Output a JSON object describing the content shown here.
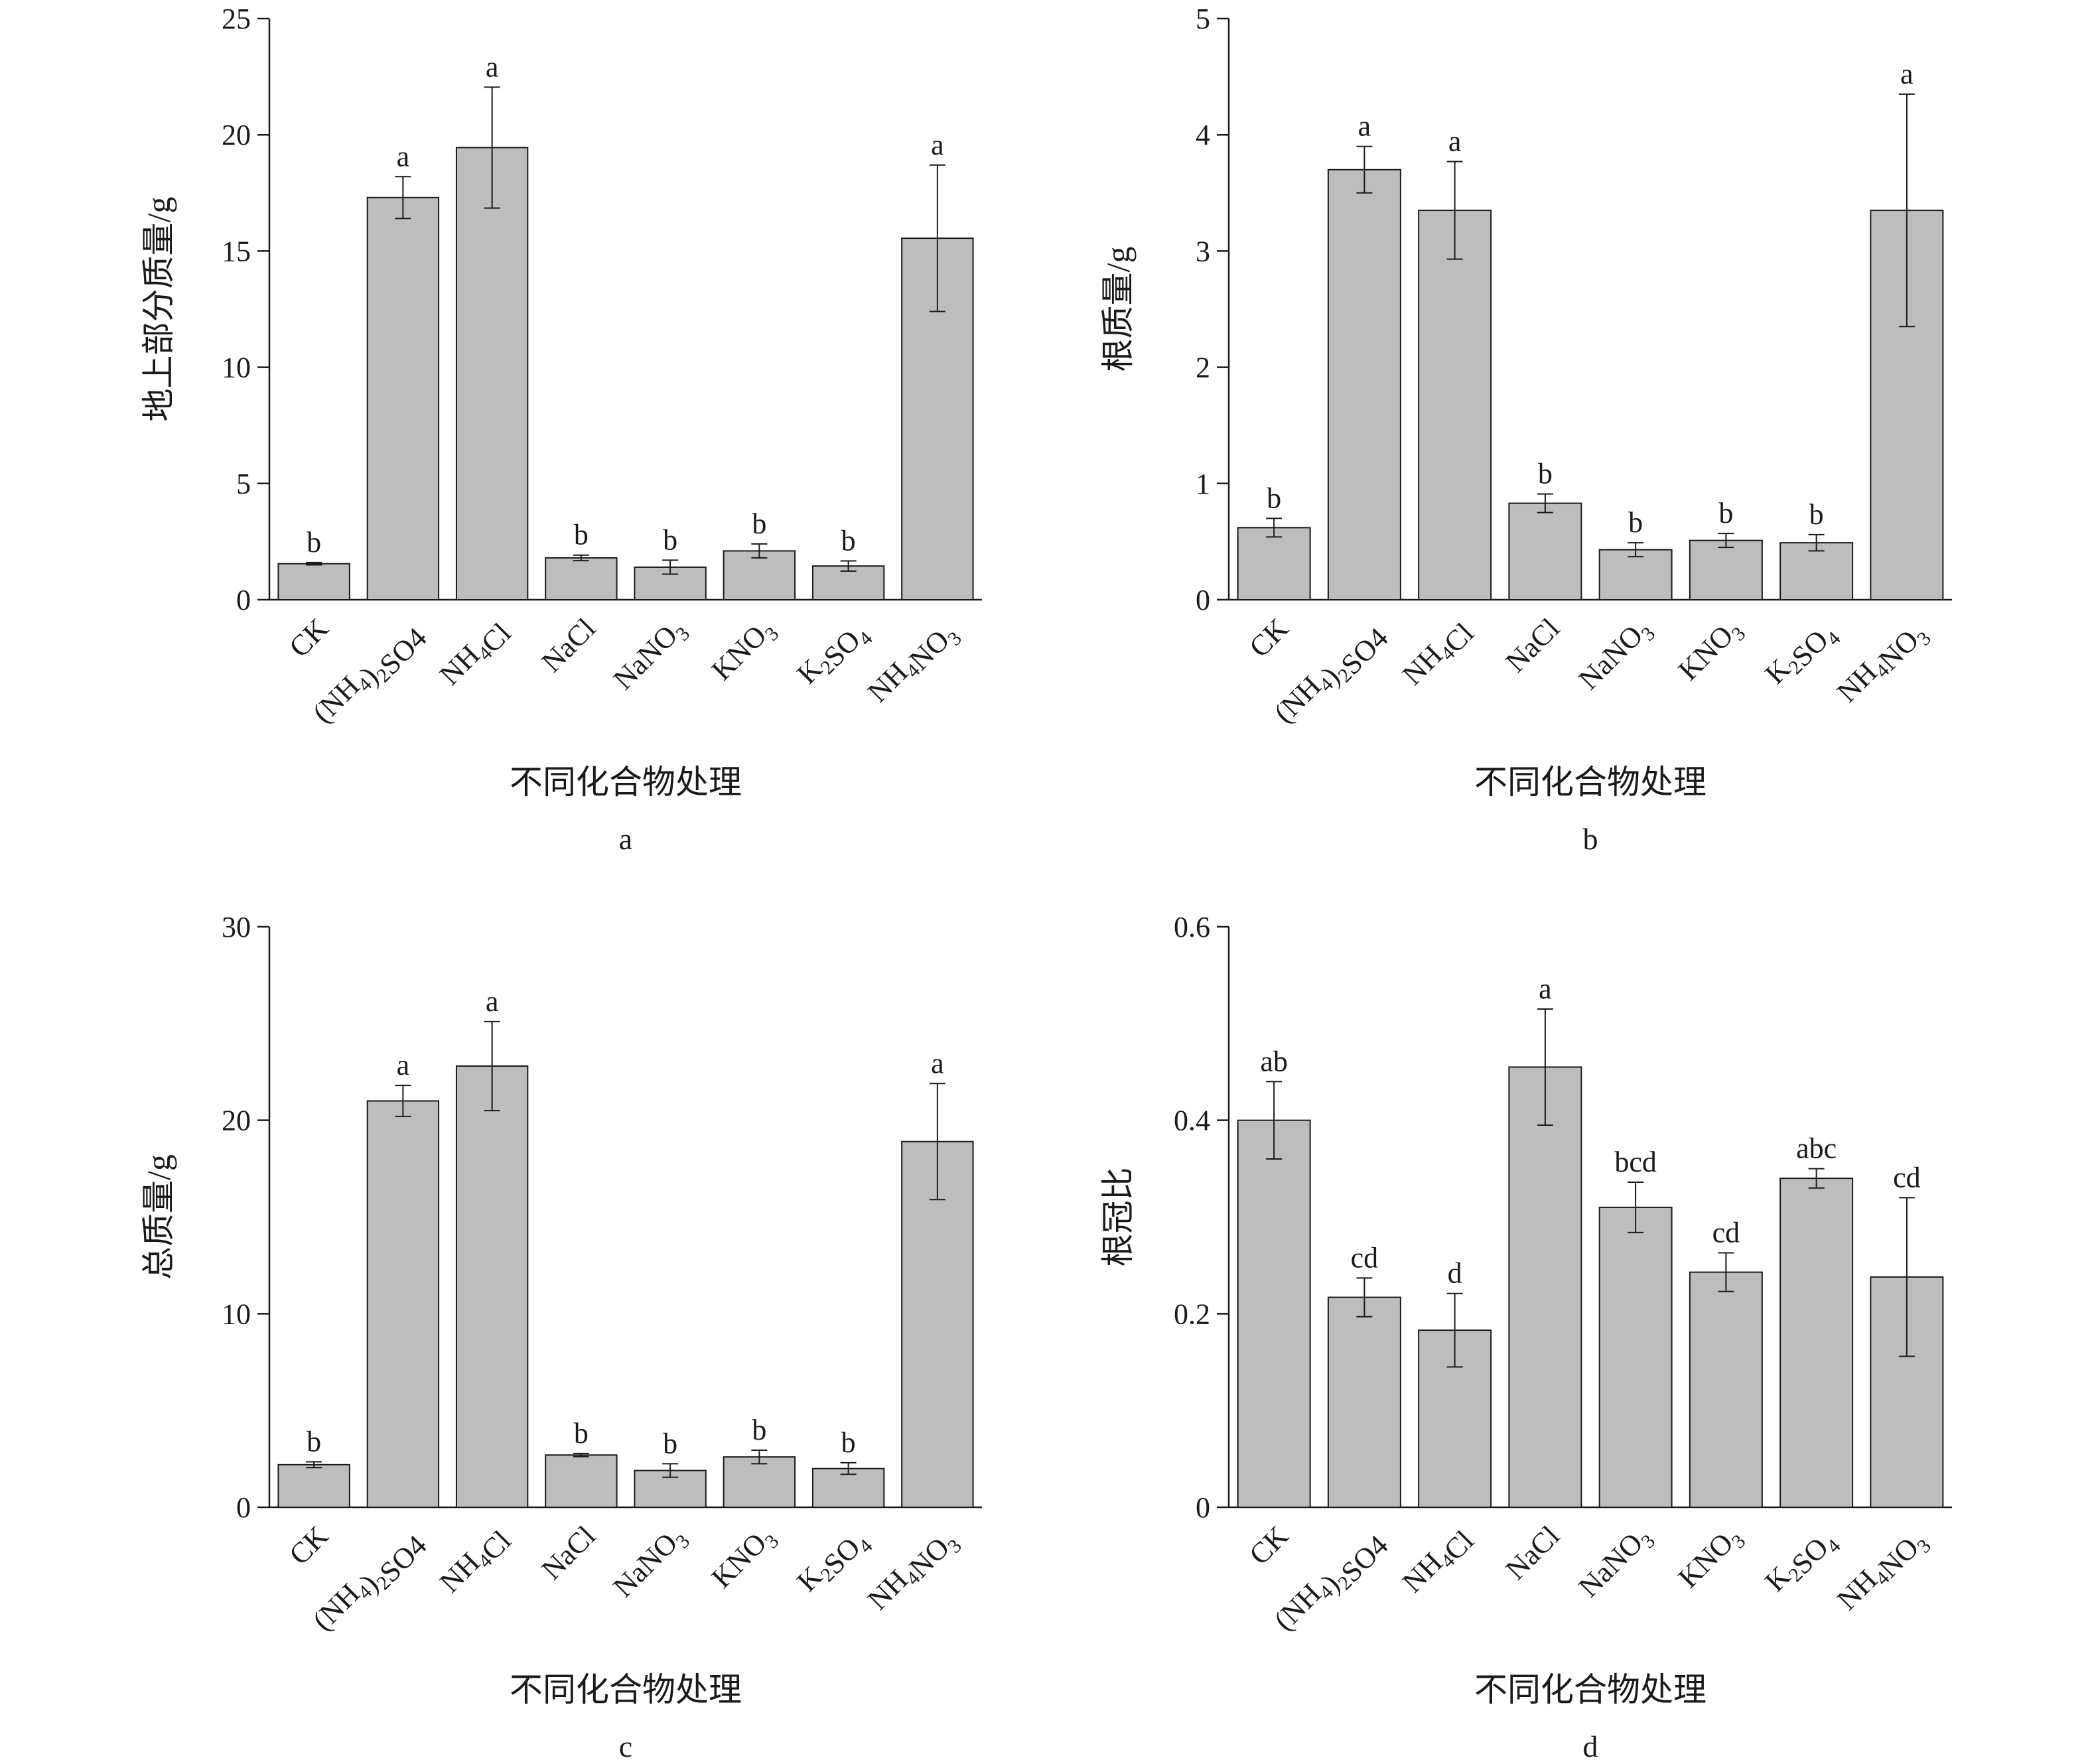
{
  "chart_data": [
    {
      "type": "bar",
      "panel": "a",
      "categories": [
        "CK",
        "(NH4)2SO4",
        "NH4Cl",
        "NaCl",
        "NaNO3",
        "KNO3",
        "K2SO4",
        "NH4NO3"
      ],
      "values": [
        1.55,
        17.3,
        19.45,
        1.8,
        1.4,
        2.1,
        1.45,
        15.55
      ],
      "errors": [
        0.05,
        0.9,
        2.6,
        0.12,
        0.3,
        0.3,
        0.22,
        3.15
      ],
      "significance": [
        "b",
        "a",
        "a",
        "b",
        "b",
        "b",
        "b",
        "a"
      ],
      "ylabel": "地上部分质量/g",
      "xlabel": "不同化合物处理",
      "ylim": [
        0,
        25
      ],
      "yticks": [
        0,
        5,
        10,
        15,
        20,
        25
      ],
      "ytick_labels": [
        "0",
        "5",
        "10",
        "15",
        "20",
        "25"
      ]
    },
    {
      "type": "bar",
      "panel": "b",
      "categories": [
        "CK",
        "(NH4)2SO4",
        "NH4Cl",
        "NaCl",
        "NaNO3",
        "KNO3",
        "K2SO4",
        "NH4NO3"
      ],
      "values": [
        0.62,
        3.7,
        3.35,
        0.83,
        0.43,
        0.51,
        0.49,
        3.35
      ],
      "errors": [
        0.08,
        0.2,
        0.42,
        0.08,
        0.06,
        0.06,
        0.07,
        1.0
      ],
      "significance": [
        "b",
        "a",
        "a",
        "b",
        "b",
        "b",
        "b",
        "a"
      ],
      "ylabel": "根质量/g",
      "xlabel": "不同化合物处理",
      "ylim": [
        0,
        5
      ],
      "yticks": [
        0,
        1,
        2,
        3,
        4,
        5
      ],
      "ytick_labels": [
        "0",
        "1",
        "2",
        "3",
        "4",
        "5"
      ]
    },
    {
      "type": "bar",
      "panel": "c",
      "categories": [
        "CK",
        "(NH4)2SO4",
        "NH4Cl",
        "NaCl",
        "NaNO3",
        "KNO3",
        "K2SO4",
        "NH4NO3"
      ],
      "values": [
        2.2,
        21.0,
        22.8,
        2.7,
        1.9,
        2.6,
        2.0,
        18.9
      ],
      "errors": [
        0.15,
        0.8,
        2.3,
        0.08,
        0.35,
        0.35,
        0.3,
        3.0
      ],
      "significance": [
        "b",
        "a",
        "a",
        "b",
        "b",
        "b",
        "b",
        "a"
      ],
      "ylabel": "总质量/g",
      "xlabel": "不同化合物处理",
      "ylim": [
        0,
        30
      ],
      "yticks": [
        0,
        10,
        20,
        30
      ],
      "ytick_labels": [
        "0",
        "10",
        "20",
        "30"
      ]
    },
    {
      "type": "bar",
      "panel": "d",
      "categories": [
        "CK",
        "(NH4)2SO4",
        "NH4Cl",
        "NaCl",
        "NaNO3",
        "KNO3",
        "K2SO4",
        "NH4NO3"
      ],
      "values": [
        0.4,
        0.217,
        0.183,
        0.455,
        0.31,
        0.243,
        0.34,
        0.238
      ],
      "errors": [
        0.04,
        0.02,
        0.038,
        0.06,
        0.026,
        0.02,
        0.01,
        0.082
      ],
      "significance": [
        "ab",
        "cd",
        "d",
        "a",
        "bcd",
        "cd",
        "abc",
        "cd"
      ],
      "ylabel": "根冠比",
      "xlabel": "不同化合物处理",
      "ylim": [
        0,
        0.6
      ],
      "yticks": [
        0,
        0.2,
        0.4,
        0.6
      ],
      "ytick_labels": [
        "0",
        "0.2",
        "0.4",
        "0.6"
      ]
    }
  ],
  "category_labels": [
    {
      "pre": "CK",
      "sub1": "",
      "mid": "",
      "sub2": "",
      "post": ""
    },
    {
      "pre": "(NH",
      "sub1": "4",
      "mid": ")",
      "sub2": "2",
      "post": "SO4"
    },
    {
      "pre": "NH",
      "sub1": "4",
      "mid": "Cl",
      "sub2": "",
      "post": ""
    },
    {
      "pre": "NaCl",
      "sub1": "",
      "mid": "",
      "sub2": "",
      "post": ""
    },
    {
      "pre": "NaNO",
      "sub1": "3",
      "mid": "",
      "sub2": "",
      "post": ""
    },
    {
      "pre": "KNO",
      "sub1": "3",
      "mid": "",
      "sub2": "",
      "post": ""
    },
    {
      "pre": "K",
      "sub1": "2",
      "mid": "SO",
      "sub2": "4",
      "post": ""
    },
    {
      "pre": "NH",
      "sub1": "4",
      "mid": "NO",
      "sub2": "3",
      "post": ""
    }
  ],
  "colors": {
    "bar_fill": "#bdbdbd",
    "stroke": "#1a1a1a"
  }
}
